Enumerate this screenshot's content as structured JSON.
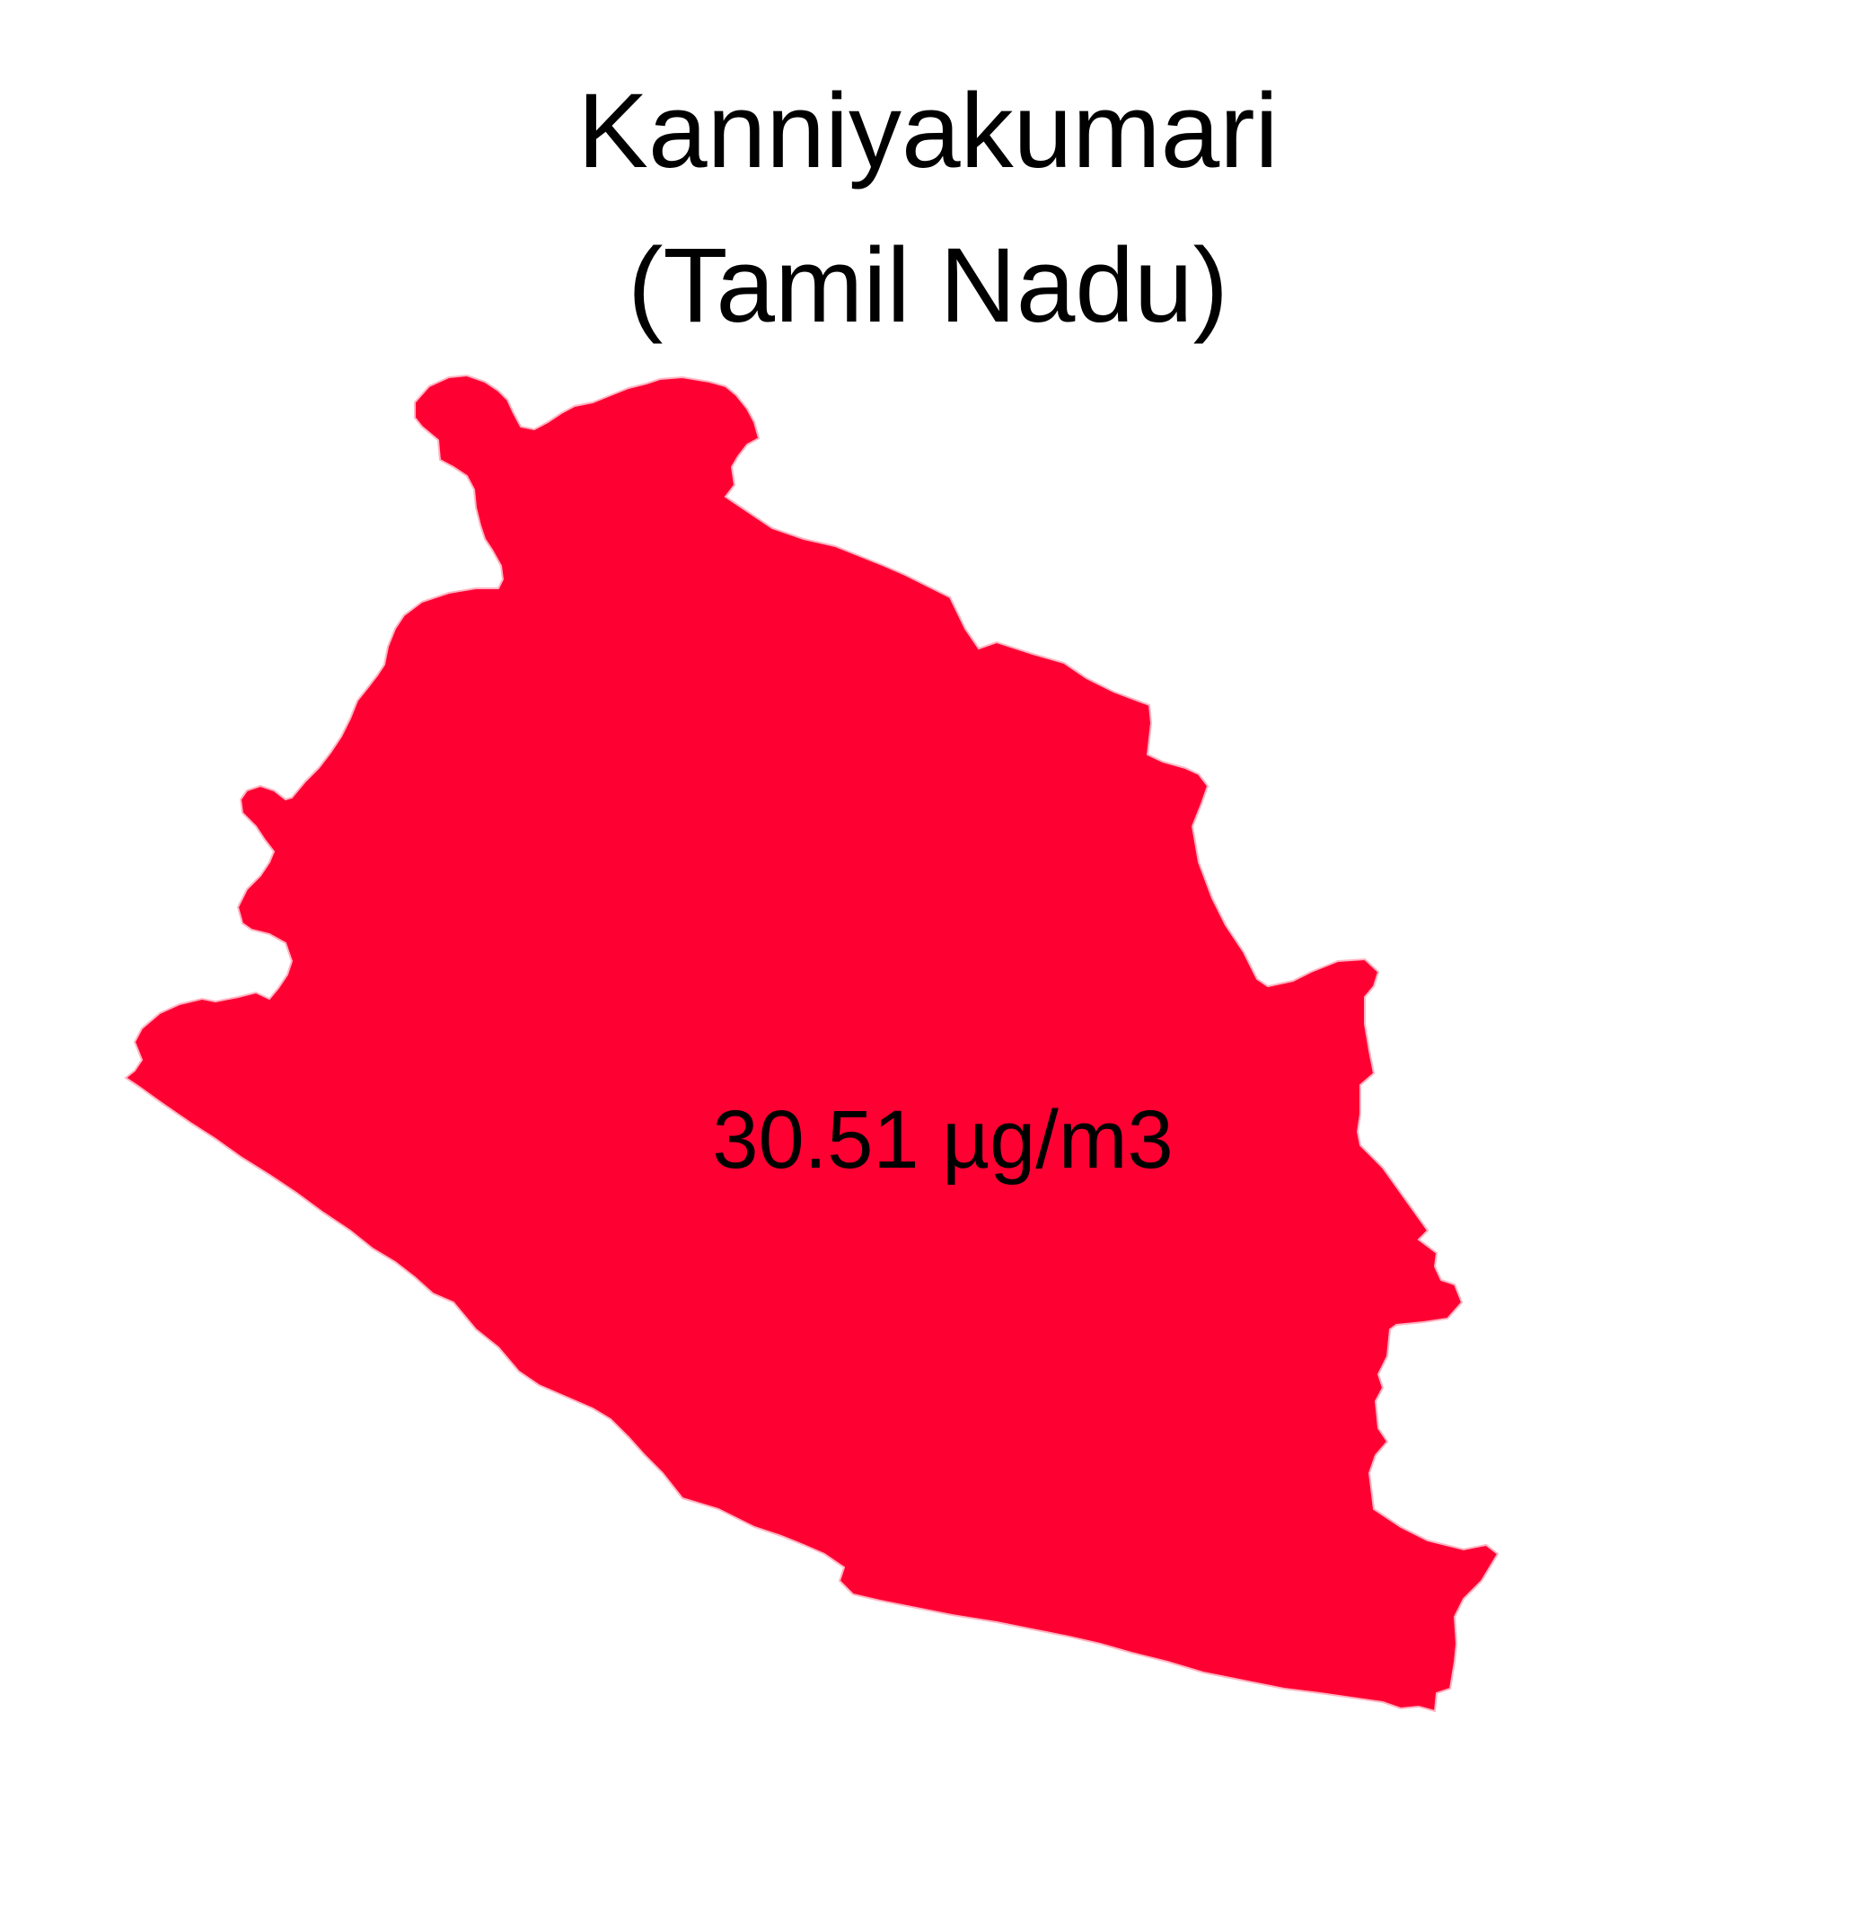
{
  "title": {
    "line1": "Kanniyakumari",
    "line2": "(Tamil Nadu)"
  },
  "region": {
    "name": "Kanniyakumari",
    "value_label": "30.51 µg/m3",
    "fill_color": "#FF0033",
    "border_color": "#FFB3C1"
  }
}
